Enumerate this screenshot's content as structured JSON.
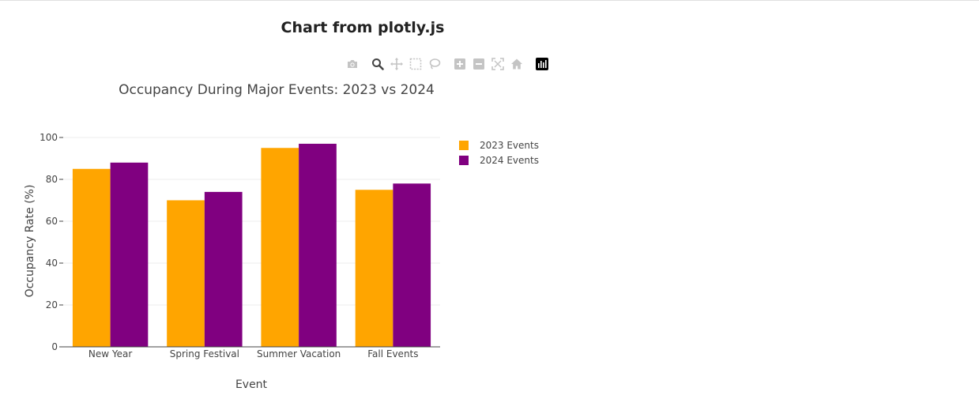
{
  "page": {
    "heading": "Chart from plotly.js"
  },
  "modebar": {
    "buttons": [
      {
        "icon": "camera-icon",
        "label": "Download plot as a png"
      },
      {
        "icon": "zoom-icon",
        "label": "Zoom"
      },
      {
        "icon": "pan-icon",
        "label": "Pan"
      },
      {
        "icon": "box-select-icon",
        "label": "Box Select"
      },
      {
        "icon": "lasso-select-icon",
        "label": "Lasso Select"
      },
      {
        "icon": "zoom-in-icon",
        "label": "Zoom in"
      },
      {
        "icon": "zoom-out-icon",
        "label": "Zoom out"
      },
      {
        "icon": "autoscale-icon",
        "label": "Autoscale"
      },
      {
        "icon": "reset-axes-icon",
        "label": "Reset axes"
      },
      {
        "icon": "plotly-logo-icon",
        "label": "Produced with Plotly"
      }
    ],
    "active": "zoom-icon"
  },
  "chart_data": {
    "type": "bar",
    "title": "Occupancy During Major Events: 2023 vs 2024",
    "xlabel": "Event",
    "ylabel": "Occupancy Rate (%)",
    "categories": [
      "New Year",
      "Spring Festival",
      "Summer Vacation",
      "Fall Events"
    ],
    "series": [
      {
        "name": "2023 Events",
        "color": "#FFA500",
        "values": [
          85,
          70,
          95,
          75
        ]
      },
      {
        "name": "2024 Events",
        "color": "#800080",
        "values": [
          88,
          74,
          97,
          78
        ]
      }
    ],
    "ylim": [
      0,
      100
    ],
    "yticks": [
      0,
      20,
      40,
      60,
      80,
      100
    ],
    "grid": true,
    "legend_position": "right"
  }
}
